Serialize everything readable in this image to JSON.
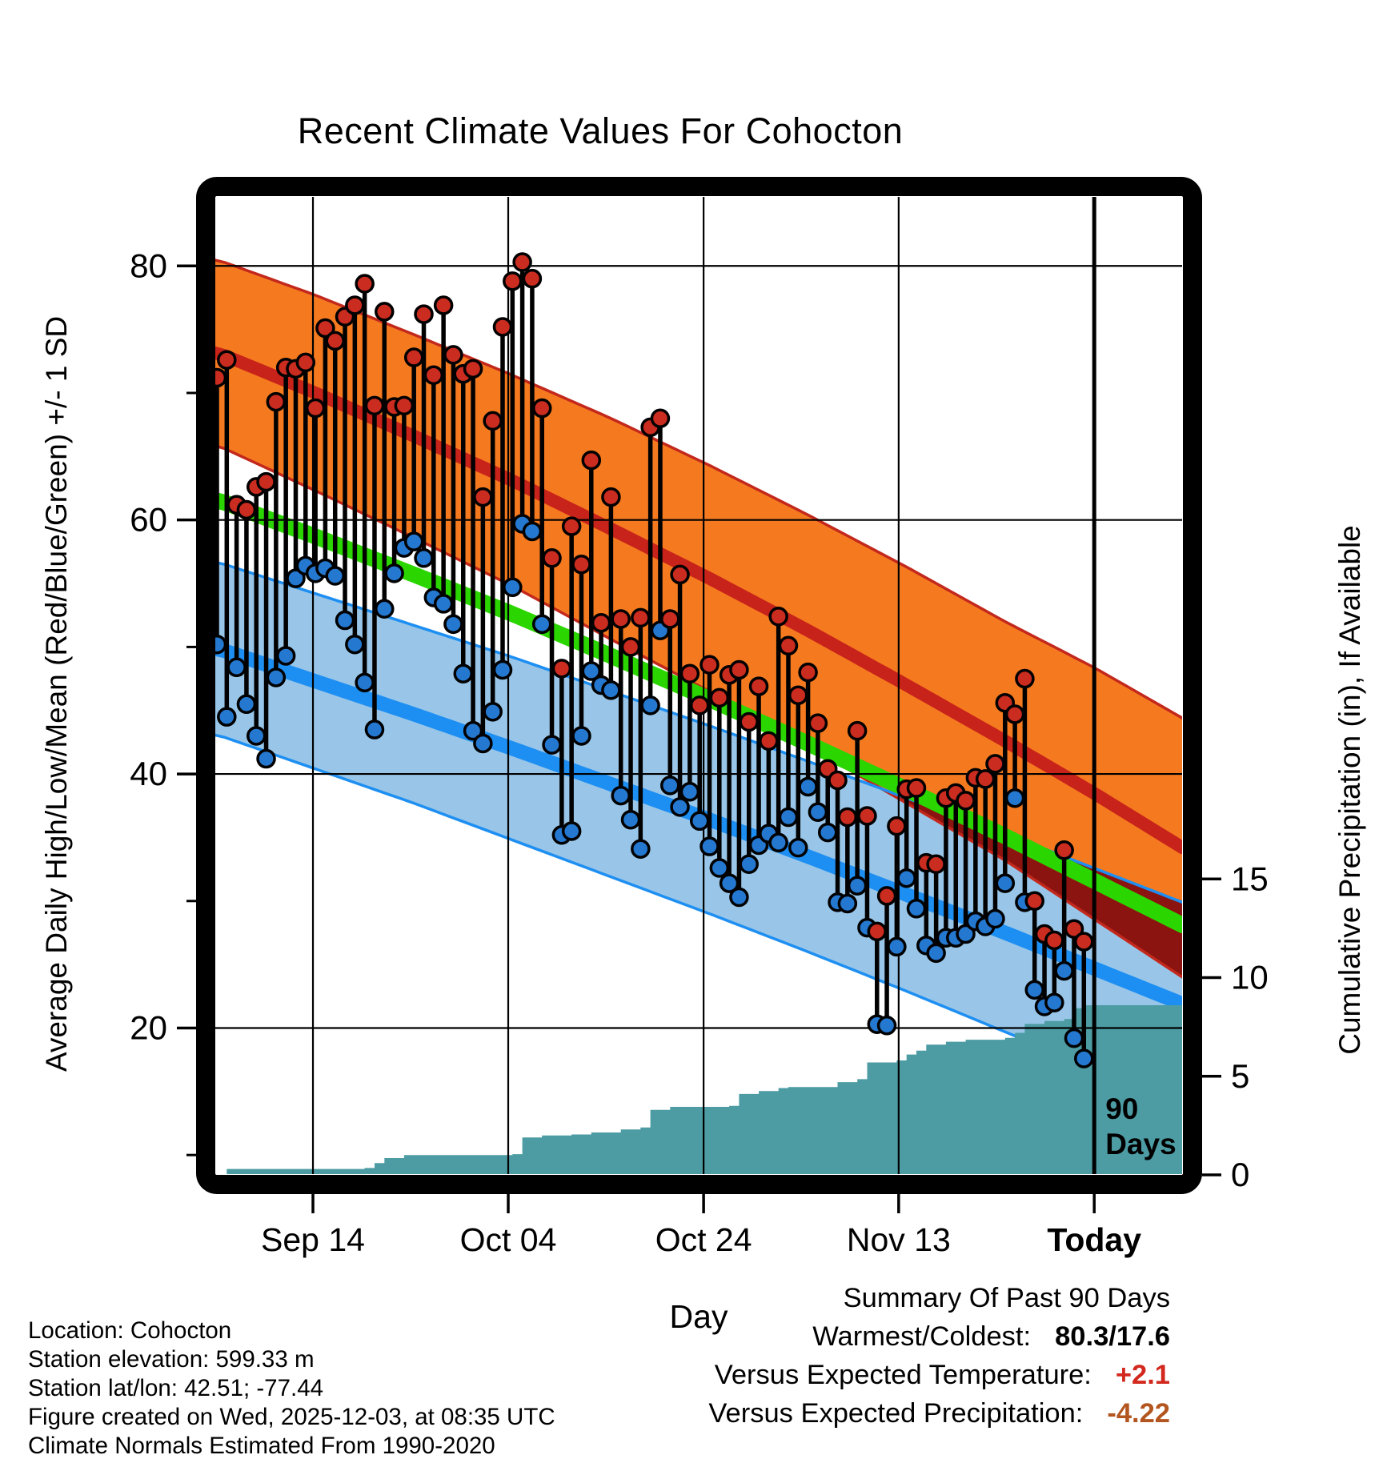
{
  "title": "Recent Climate Values For Cohocton",
  "axes": {
    "x": {
      "label": "Day",
      "ticks": [
        {
          "label": "Sep 14",
          "day": 9.75,
          "bold": false
        },
        {
          "label": "Oct 04",
          "day": 29.57,
          "bold": false
        },
        {
          "label": "Oct 24",
          "day": 49.4,
          "bold": false
        },
        {
          "label": "Nov 13",
          "day": 69.2,
          "bold": false
        },
        {
          "label": "Today",
          "day": 89.05,
          "bold": true
        }
      ]
    },
    "y_left": {
      "label": "Average Daily High/Low/Mean (Red/Blue/Green) +/- 1 SD",
      "major_ticks": [
        80,
        60,
        40,
        20
      ],
      "minor_ticks": [
        70,
        50,
        30,
        10
      ]
    },
    "y_right": {
      "label": "Cumulative Precipitation (in), If Available",
      "ticks": [
        15,
        10,
        5,
        0
      ]
    }
  },
  "chart_data": {
    "type": "combo",
    "description": "Daily high/low temperature stems with climate-normal bands (+/- 1 SD) and cumulative precipitation area",
    "start_date": "Sep 5",
    "end_label": "Today",
    "num_days": 90,
    "daily_high": [
      71.2,
      72.6,
      61.2,
      60.8,
      62.6,
      63,
      69.3,
      72,
      71.9,
      72.4,
      68.8,
      75.1,
      74.1,
      76,
      76.9,
      78.6,
      69,
      76.4,
      68.9,
      69,
      72.8,
      76.2,
      71.4,
      76.9,
      73,
      71.5,
      71.9,
      61.8,
      67.8,
      75.2,
      78.8,
      80.3,
      79,
      68.8,
      57,
      48.3,
      59.5,
      56.5,
      64.7,
      51.9,
      61.8,
      52.2,
      50,
      52.3,
      67.3,
      68,
      52.2,
      55.7,
      47.9,
      45.4,
      48.6,
      46,
      47.8,
      48.2,
      44.1,
      46.9,
      42.6,
      52.4,
      50.1,
      46.2,
      48,
      44,
      40.4,
      39.5,
      36.6,
      43.4,
      36.7,
      27.6,
      30.4,
      35.9,
      38.8,
      38.9,
      33,
      32.9,
      38.1,
      38.5,
      37.9,
      39.7,
      39.6,
      40.8,
      45.6,
      44.7,
      47.5,
      30,
      27.4,
      26.9,
      34,
      27.8,
      26.8
    ],
    "daily_low": [
      50.2,
      44.5,
      48.4,
      45.5,
      43,
      41.2,
      47.6,
      49.3,
      55.4,
      56.4,
      55.8,
      56.2,
      55.6,
      52.1,
      50.2,
      47.2,
      43.5,
      53,
      55.8,
      57.8,
      58.3,
      57,
      53.9,
      53.4,
      51.8,
      47.9,
      43.4,
      42.4,
      44.9,
      48.2,
      54.7,
      59.7,
      59.1,
      51.8,
      42.3,
      35.2,
      35.5,
      43,
      48.1,
      47,
      46.6,
      38.3,
      36.4,
      34.1,
      45.4,
      51.3,
      39.1,
      37.4,
      38.6,
      36.3,
      34.3,
      32.6,
      31.4,
      30.3,
      32.9,
      34.4,
      35.3,
      34.6,
      36.6,
      34.2,
      39,
      37,
      35.4,
      29.9,
      29.8,
      31.2,
      27.9,
      20.3,
      20.2,
      26.4,
      31.8,
      29.4,
      26.5,
      25.9,
      27.1,
      27.1,
      27.4,
      28.4,
      28,
      28.6,
      31.4,
      38.1,
      29.9,
      23,
      21.7,
      22,
      24.5,
      19.2,
      17.6
    ],
    "normals": {
      "days": [
        0,
        10,
        20,
        30,
        40,
        50,
        60,
        70,
        80,
        89,
        98
      ],
      "high_plus_sd": [
        80.5,
        77.7,
        74.6,
        71.4,
        68.0,
        64.3,
        60.4,
        56.3,
        52.0,
        48.4,
        44.4
      ],
      "high_mean": [
        73.2,
        70.0,
        66.6,
        63.1,
        59.3,
        55.4,
        51.3,
        47.0,
        42.6,
        38.5,
        34.2
      ],
      "high_minus_sd": [
        65.9,
        62.3,
        58.6,
        54.8,
        50.6,
        46.5,
        42.2,
        37.7,
        33.2,
        28.6,
        24.0
      ],
      "mean": [
        61.6,
        58.7,
        55.7,
        52.6,
        49.3,
        45.9,
        42.4,
        38.8,
        35.1,
        31.6,
        28.1
      ],
      "low_plus_sd": [
        56.7,
        54.2,
        51.7,
        49.2,
        46.5,
        43.8,
        41.0,
        38.1,
        35.3,
        32.6,
        29.9
      ],
      "low_mean": [
        49.9,
        47.3,
        44.7,
        42.0,
        39.2,
        36.4,
        33.5,
        30.5,
        27.5,
        24.7,
        21.9
      ],
      "low_minus_sd": [
        43.1,
        40.4,
        37.7,
        34.8,
        31.9,
        29.0,
        26.0,
        22.9,
        19.7,
        16.8,
        13.9
      ]
    },
    "cumulative_precip": [
      [
        0,
        0
      ],
      [
        1,
        0.3
      ],
      [
        15,
        0.35
      ],
      [
        16,
        0.6
      ],
      [
        17,
        0.85
      ],
      [
        19,
        1.0
      ],
      [
        30,
        1.05
      ],
      [
        31,
        1.9
      ],
      [
        33,
        2.0
      ],
      [
        36,
        2.05
      ],
      [
        38,
        2.15
      ],
      [
        41,
        2.3
      ],
      [
        43,
        2.4
      ],
      [
        44,
        3.3
      ],
      [
        46,
        3.45
      ],
      [
        52,
        3.5
      ],
      [
        53,
        4.1
      ],
      [
        55,
        4.25
      ],
      [
        57,
        4.4
      ],
      [
        58,
        4.45
      ],
      [
        63,
        4.7
      ],
      [
        65,
        4.85
      ],
      [
        66,
        5.7
      ],
      [
        69,
        5.8
      ],
      [
        70,
        6.1
      ],
      [
        71,
        6.3
      ],
      [
        72,
        6.6
      ],
      [
        74,
        6.75
      ],
      [
        76,
        6.85
      ],
      [
        80,
        6.95
      ],
      [
        81,
        7.2
      ],
      [
        82,
        7.65
      ],
      [
        84,
        7.8
      ],
      [
        86,
        7.9
      ],
      [
        87,
        8.45
      ],
      [
        88,
        8.6
      ],
      [
        98,
        8.62
      ]
    ],
    "ninety_day_marker": {
      "day": 89.05,
      "label_line1": "90",
      "label_line2": "Days"
    }
  },
  "footer": {
    "lines": [
      "Location: Cohocton",
      "Station elevation: 599.33 m",
      "Station lat/lon: 42.51; -77.44",
      "Figure created on Wed, 2025-12-03, at 08:35 UTC",
      "Climate Normals Estimated From 1990-2020"
    ]
  },
  "summary": {
    "title": "Summary Of Past 90 Days",
    "warmest_coldest_label": "Warmest/Coldest:",
    "warmest_coldest_value": "80.3/17.6",
    "vs_temp_label": "Versus Expected Temperature:",
    "vs_temp_value": "+2.1",
    "vs_precip_label": "Versus Expected Precipitation:",
    "vs_precip_value": "-4.22"
  },
  "colors": {
    "high_band": "#F57A1F",
    "high_edge": "#C3281C",
    "high_mean_line": "#C8231A",
    "low_band": "#99C6E8",
    "low_edge": "#1E8FF2",
    "low_mean_line": "#1E8FF2",
    "mean_line": "#2BD600",
    "overlap_band": "#8C1410",
    "precip_fill": "#4D9CA4",
    "dot_high": "#CB2C20",
    "dot_low": "#2578D0",
    "stem": "#000000",
    "grid": "#000000",
    "frame": "#000000",
    "vs_temp_value_color": "#D2281E",
    "vs_precip_value_color": "#B3551E"
  }
}
